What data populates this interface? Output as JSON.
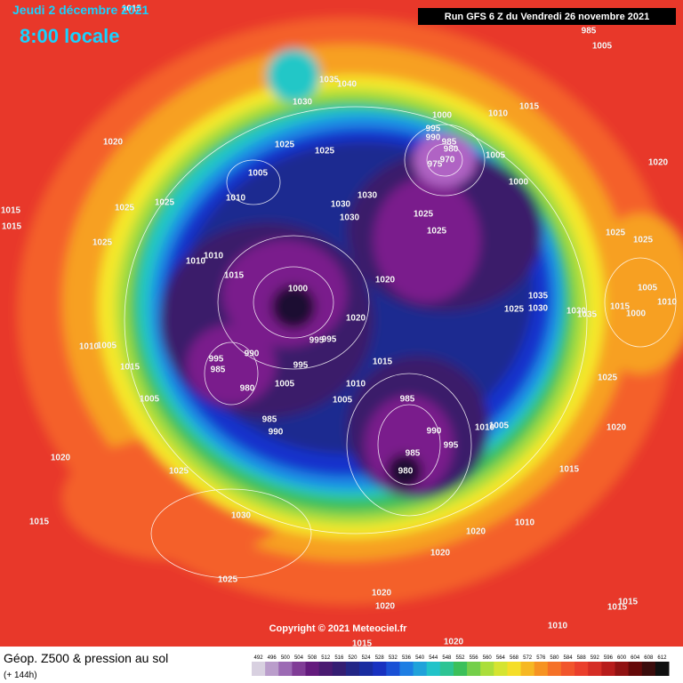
{
  "header": {
    "date": "Jeudi 2 décembre 2021",
    "time": "8:00 locale",
    "run": "Run GFS 6 Z du Vendredi 26 novembre 2021"
  },
  "isobar_labels": [
    "1015",
    "1030",
    "1035",
    "1040",
    "1000",
    "1010",
    "1015",
    "995",
    "990",
    "985",
    "980",
    "975",
    "970",
    "1005",
    "1000",
    "1020",
    "1025",
    "1025",
    "1005",
    "1010",
    "1030",
    "1030",
    "1030",
    "1025",
    "1025",
    "1025",
    "1025",
    "1020",
    "1025",
    "1025",
    "1015",
    "1025",
    "1010",
    "1010",
    "1015",
    "1000",
    "1020",
    "1020",
    "1035",
    "1030",
    "1025",
    "1030",
    "1035",
    "1015",
    "1005",
    "1010",
    "1000",
    "995",
    "995",
    "1015",
    "1010",
    "1005",
    "985",
    "990",
    "995",
    "1005",
    "1010",
    "1015",
    "1020",
    "1025",
    "995",
    "985",
    "990",
    "980",
    "995",
    "1005",
    "985",
    "990",
    "1005",
    "1015",
    "1010",
    "1005",
    "1015",
    "1020",
    "1025",
    "1030",
    "1015",
    "1025",
    "985",
    "980",
    "1020",
    "1010",
    "1020",
    "1020",
    "1020",
    "1015",
    "1015",
    "1010",
    "1015",
    "1020",
    "1005",
    "985"
  ],
  "map": {
    "copyright": "Copyright © 2021 Meteociel.fr"
  },
  "footer": {
    "title": "Géop. Z500 & pression au sol",
    "lead": "(+ 144h)"
  },
  "colorbar": {
    "labels": [
      492,
      496,
      500,
      504,
      508,
      512,
      516,
      520,
      524,
      528,
      532,
      536,
      540,
      544,
      548,
      552,
      556,
      560,
      564,
      568,
      572,
      576,
      580,
      584,
      588,
      592,
      596,
      600,
      604,
      608,
      612
    ]
  }
}
